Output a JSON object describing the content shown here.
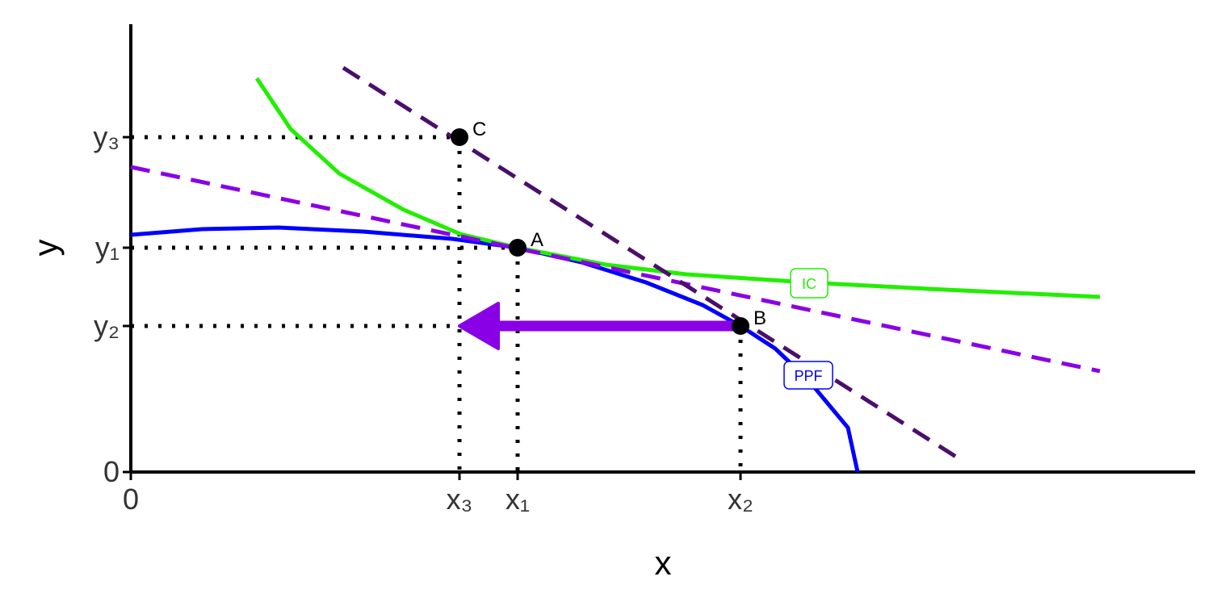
{
  "chart_data": {
    "type": "line",
    "x_label": "x",
    "y_label": "y",
    "xlim": [
      0,
      13.18
    ],
    "ylim": [
      0,
      5.55
    ],
    "xticks": [
      0,
      {
        "value": 4.07,
        "label": "x₃"
      },
      {
        "value": 4.79,
        "label": "x₁"
      },
      {
        "value": 7.55,
        "label": "x₂"
      }
    ],
    "yticks": [
      0,
      {
        "value": 1.81,
        "label": "y₂"
      },
      {
        "value": 2.78,
        "label": "y₁"
      },
      {
        "value": 4.15,
        "label": "y₃"
      }
    ],
    "series": [
      {
        "name": "PPF",
        "color": "#0000ff",
        "dash": "solid",
        "x": [
          0,
          0.88,
          1.83,
          2.88,
          3.98,
          4.79,
          5.58,
          6.38,
          7.08,
          7.55,
          7.98,
          8.38,
          8.63,
          8.88,
          9.0
        ],
        "values": [
          2.94,
          3.01,
          3.03,
          2.98,
          2.89,
          2.78,
          2.6,
          2.35,
          2.07,
          1.81,
          1.53,
          1.15,
          0.85,
          0.55,
          0
        ]
      },
      {
        "name": "IC",
        "color": "#22ee00",
        "dash": "solid",
        "x": [
          1.56,
          1.98,
          2.58,
          3.38,
          4.08,
          4.79,
          5.88,
          6.88,
          8.38,
          9.88,
          12.0
        ],
        "values": [
          4.88,
          4.25,
          3.7,
          3.25,
          2.95,
          2.78,
          2.57,
          2.45,
          2.35,
          2.27,
          2.17
        ]
      },
      {
        "color": "#8a00e6",
        "dash": "dashed",
        "x": [
          0,
          12.0
        ],
        "values": [
          3.78,
          1.25
        ]
      },
      {
        "color": "#4b0f6b",
        "dash": "dashed",
        "x": [
          2.63,
          10.28
        ],
        "values": [
          5.01,
          0.15
        ]
      }
    ],
    "points": [
      {
        "label": "A",
        "x": 4.79,
        "y": 2.78
      },
      {
        "label": "B",
        "x": 7.55,
        "y": 1.81
      },
      {
        "label": "C",
        "x": 4.07,
        "y": 4.15
      }
    ],
    "arrow": {
      "color": "#8a00e6",
      "x": [
        7.55,
        4.07
      ],
      "y": 1.81
    }
  }
}
